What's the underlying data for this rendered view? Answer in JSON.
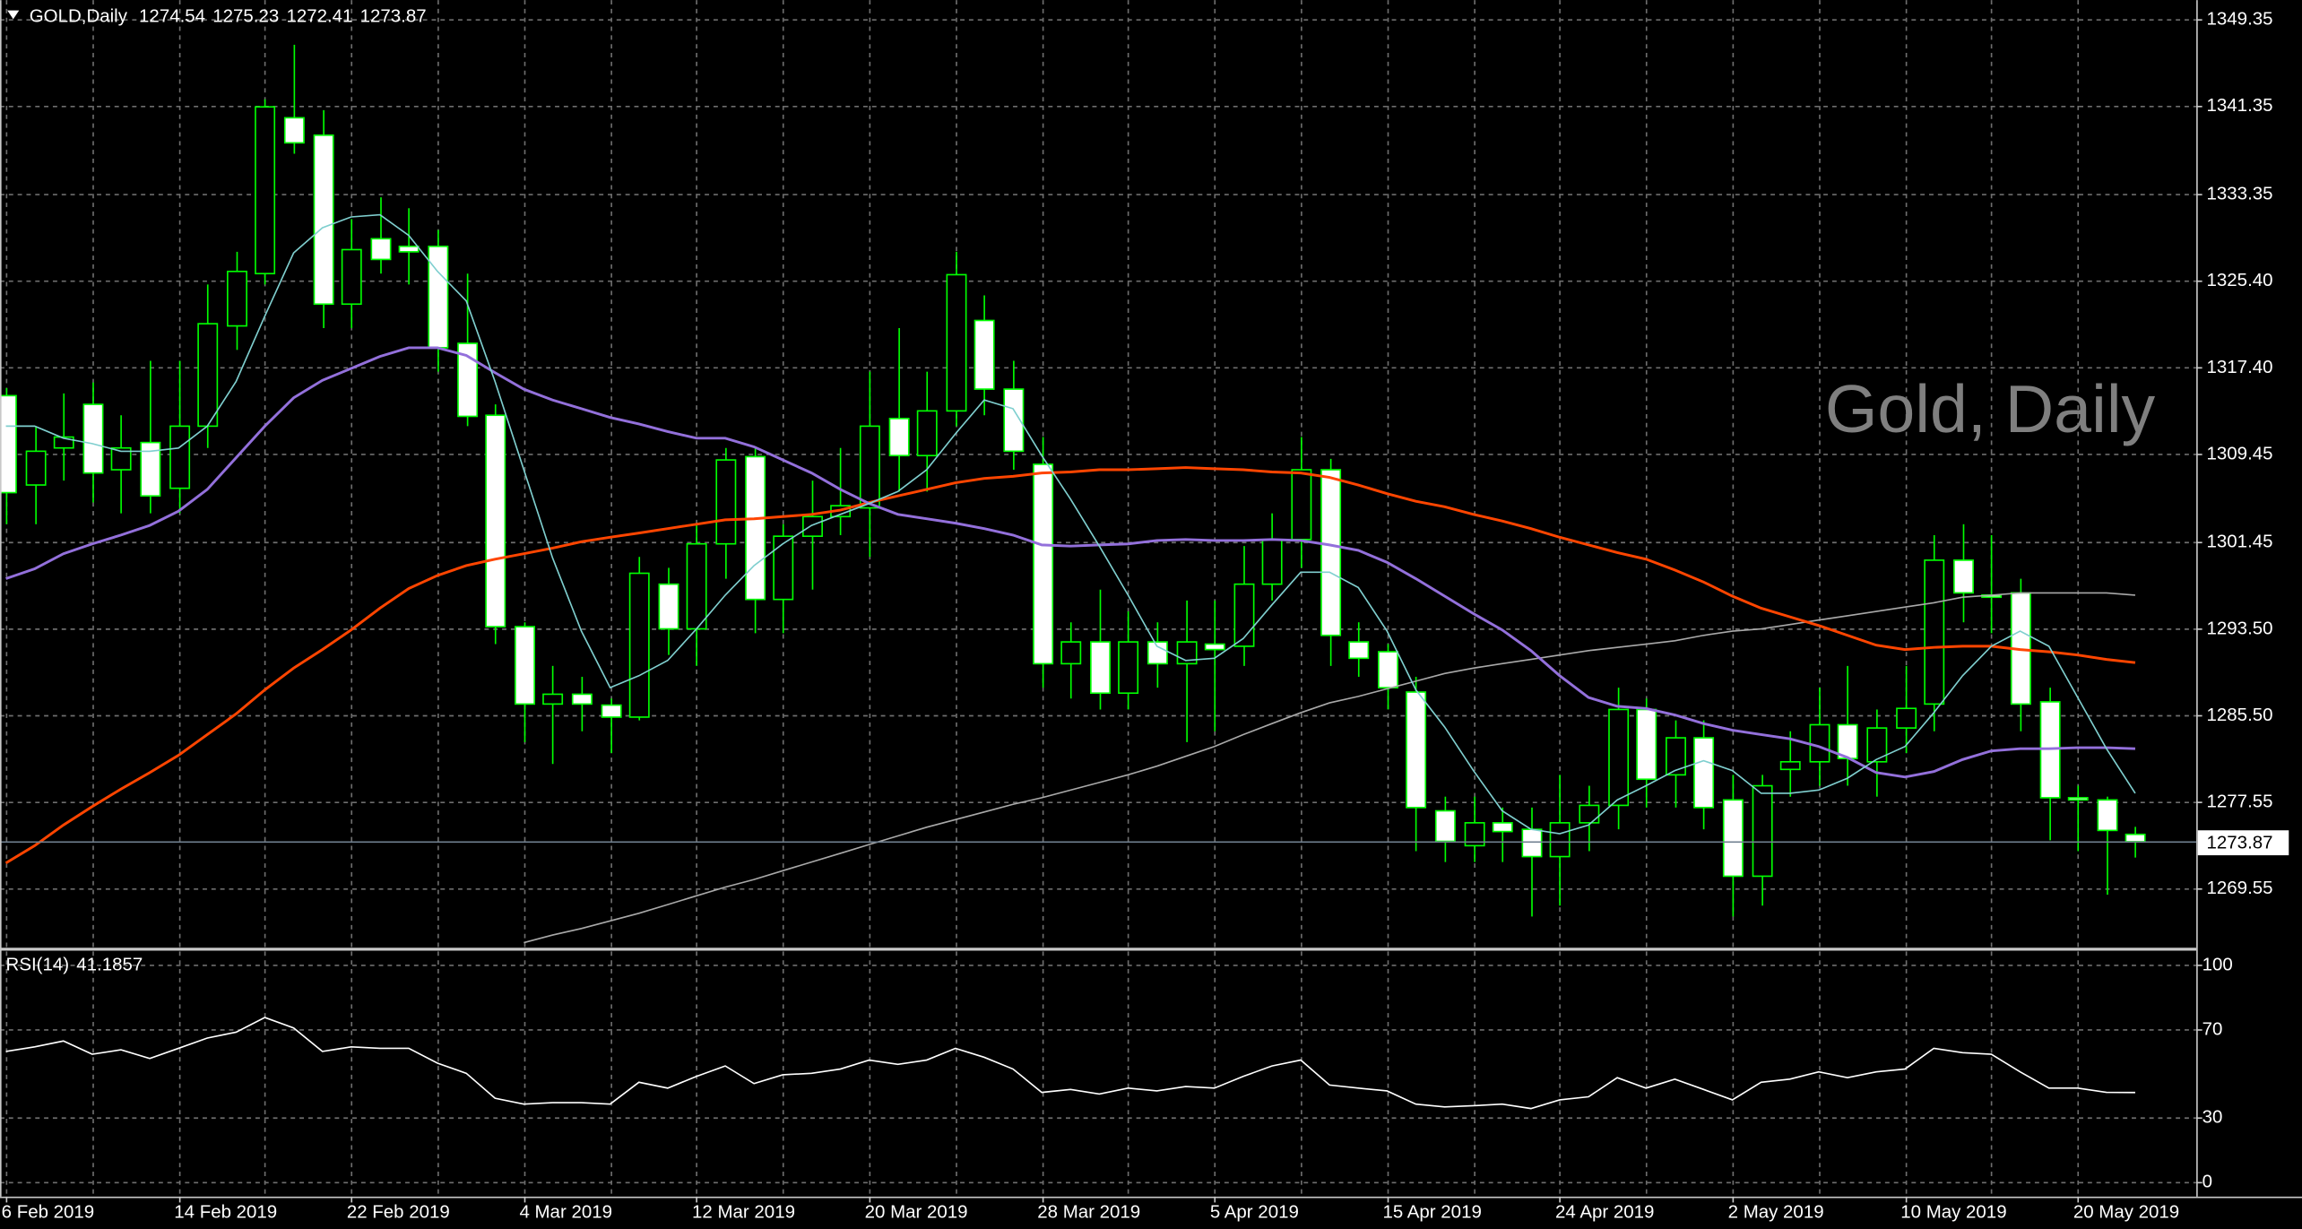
{
  "chart_data": {
    "type": "candlestick",
    "symbol": "GOLD,Daily",
    "watermark": "Gold, Daily",
    "categories": [
      "6 Feb 2019",
      null,
      null,
      null,
      null,
      null,
      "14 Feb 2019",
      null,
      null,
      null,
      null,
      null,
      "22 Feb 2019",
      null,
      null,
      null,
      null,
      null,
      "4 Mar 2019",
      null,
      null,
      null,
      null,
      null,
      "12 Mar 2019",
      null,
      null,
      null,
      null,
      null,
      "20 Mar 2019",
      null,
      null,
      null,
      null,
      null,
      "28 Mar 2019",
      null,
      null,
      null,
      null,
      null,
      "5 Apr 2019",
      null,
      null,
      null,
      null,
      null,
      "15 Apr 2019",
      null,
      null,
      null,
      null,
      null,
      "24 Apr 2019",
      null,
      null,
      null,
      null,
      null,
      "2 May 2019",
      null,
      null,
      null,
      null,
      null,
      "10 May 2019",
      null,
      null,
      null,
      null,
      null,
      "20 May 2019",
      null,
      null
    ],
    "open": [
      1314.8,
      1306.6,
      1310,
      1314,
      1308,
      1310.5,
      1306.3,
      1312,
      1321.2,
      1326,
      1340.3,
      1338.7,
      1323.2,
      1329.2,
      1328.5,
      1328.5,
      1319.6,
      1313,
      1293.6,
      1286.5,
      1287.4,
      1286.4,
      1285.3,
      1297.5,
      1293.4,
      1301.2,
      1309.2,
      1296.1,
      1301.9,
      1303.7,
      1304.5,
      1312.7,
      1309.3,
      1313.4,
      1321.7,
      1315.4,
      1308.5,
      1290.2,
      1292.2,
      1287.5,
      1292.2,
      1290.2,
      1292,
      1291.8,
      1297.5,
      1301.6,
      1308,
      1292.2,
      1291.3,
      1287.6,
      1276.7,
      1273.5,
      1275.6,
      1275,
      1272.5,
      1275.6,
      1277.2,
      1286,
      1280,
      1283.4,
      1277.7,
      1270.7,
      1280.5,
      1281.2,
      1284.6,
      1281.2,
      1284.3,
      1286.5,
      1299.7,
      1296.5,
      1296.7,
      1286.7,
      1277.9,
      1277.7,
      1274.54
    ],
    "high": [
      1315.5,
      1312,
      1315,
      1316,
      1313,
      1318,
      1318,
      1325,
      1328,
      1342,
      1347,
      1341,
      1331,
      1333,
      1332,
      1330,
      1326,
      1314,
      1294,
      1290,
      1289,
      1287,
      1300,
      1299,
      1303,
      1310,
      1310,
      1303,
      1307,
      1310,
      1317,
      1321,
      1317,
      1328,
      1324,
      1318,
      1311,
      1294,
      1297,
      1295,
      1294,
      1296,
      1296,
      1301,
      1304,
      1311,
      1309,
      1294,
      1292,
      1289,
      1278,
      1278,
      1277,
      1277,
      1280,
      1279,
      1288,
      1287,
      1285,
      1285,
      1280,
      1280,
      1284,
      1288,
      1290,
      1286,
      1290,
      1302,
      1303,
      1302,
      1298,
      1288,
      1279,
      1278,
      1275.23
    ],
    "low": [
      1303,
      1303,
      1307,
      1305,
      1304,
      1304,
      1304,
      1310,
      1319,
      1325,
      1337,
      1321,
      1321,
      1326,
      1325,
      1317,
      1312,
      1292,
      1283,
      1281,
      1284,
      1282,
      1285,
      1291,
      1290,
      1298,
      1293,
      1293,
      1297,
      1302,
      1300,
      1306,
      1306,
      1312,
      1313,
      1308,
      1288,
      1287,
      1286,
      1286,
      1288,
      1283,
      1284,
      1290,
      1296,
      1299,
      1290,
      1289,
      1286,
      1273,
      1272,
      1272,
      1272,
      1267,
      1268,
      1273,
      1275,
      1277,
      1277,
      1275,
      1267,
      1268,
      1278,
      1279,
      1279,
      1278,
      1282,
      1284,
      1294,
      1293,
      1284,
      1274,
      1273,
      1269,
      1272.41
    ],
    "close": [
      1305.9,
      1309.7,
      1311,
      1307.7,
      1310,
      1305.6,
      1312,
      1321.4,
      1326.2,
      1341.3,
      1338,
      1323.2,
      1328.2,
      1327.3,
      1328,
      1319.2,
      1312.9,
      1293.6,
      1286.5,
      1287.4,
      1286.5,
      1285.3,
      1298.5,
      1293.4,
      1301.2,
      1308.9,
      1296.1,
      1301.9,
      1303.7,
      1304.7,
      1312,
      1309.3,
      1313.4,
      1325.9,
      1315.4,
      1309.7,
      1290.2,
      1292.2,
      1287.5,
      1292.2,
      1290.2,
      1292.2,
      1291.5,
      1297.5,
      1301.6,
      1308,
      1292.8,
      1290.7,
      1288,
      1277,
      1273.9,
      1275.6,
      1274.8,
      1272.5,
      1275.6,
      1277.2,
      1286,
      1279.6,
      1283.4,
      1277,
      1270.7,
      1279,
      1281.2,
      1284.6,
      1281.5,
      1284.3,
      1286.1,
      1299.7,
      1296.7,
      1296.3,
      1286.5,
      1277.9,
      1277.7,
      1274.9,
      1273.87
    ],
    "colors": {
      "wick": "#00ff00",
      "bull": "#000000",
      "bear": "#ffffff",
      "price_line": "#708090"
    },
    "moving_averages": [
      {
        "color": "#a9a9a9",
        "values": [
          null,
          null,
          null,
          null,
          null,
          null,
          null,
          null,
          null,
          null,
          null,
          null,
          null,
          null,
          null,
          null,
          null,
          null,
          1264.6,
          1265.3,
          1265.9,
          1266.6,
          1267.3,
          1268.1,
          1268.9,
          1269.7,
          1270.4,
          1271.2,
          1272,
          1272.8,
          1273.6,
          1274.4,
          1275.2,
          1275.9,
          1276.6,
          1277.3,
          1277.9,
          1278.6,
          1279.3,
          1280,
          1280.8,
          1281.7,
          1282.6,
          1283.7,
          1284.7,
          1285.7,
          1286.6,
          1287.2,
          1287.9,
          1288.6,
          1289.3,
          1289.8,
          1290.2,
          1290.6,
          1291,
          1291.4,
          1291.7,
          1292,
          1292.3,
          1292.8,
          1293.2,
          1293.4,
          1293.8,
          1294.2,
          1294.6,
          1295,
          1295.4,
          1295.8,
          1296.3,
          1296.5,
          1296.7,
          1296.7,
          1296.7,
          1296.7,
          1296.5
        ]
      },
      {
        "color": "#ff4500",
        "values": [
          1271.9,
          1273.5,
          1275.4,
          1277.1,
          1278.7,
          1280.2,
          1281.8,
          1283.7,
          1285.6,
          1287.8,
          1289.8,
          1291.5,
          1293.3,
          1295.3,
          1297.1,
          1298.3,
          1299.2,
          1299.8,
          1300.3,
          1300.8,
          1301.4,
          1301.8,
          1302.2,
          1302.6,
          1303,
          1303.4,
          1303.5,
          1303.7,
          1303.9,
          1304.3,
          1305,
          1305.6,
          1306.2,
          1306.8,
          1307.2,
          1307.4,
          1307.7,
          1307.8,
          1308,
          1308,
          1308.1,
          1308.2,
          1308.1,
          1308,
          1307.8,
          1307.7,
          1307.3,
          1306.6,
          1305.8,
          1305.1,
          1304.6,
          1303.9,
          1303.3,
          1302.6,
          1301.8,
          1301.1,
          1300.4,
          1299.8,
          1298.8,
          1297.7,
          1296.4,
          1295.3,
          1294.5,
          1293.7,
          1292.8,
          1291.9,
          1291.5,
          1291.7,
          1291.8,
          1291.8,
          1291.5,
          1291.3,
          1291,
          1290.6,
          1290.3
        ]
      },
      {
        "color": "#9370db",
        "values": [
          1298,
          1298.9,
          1300.3,
          1301.2,
          1302,
          1302.9,
          1304.2,
          1306.2,
          1309.1,
          1312,
          1314.6,
          1316.2,
          1317.3,
          1318.4,
          1319.2,
          1319.2,
          1318.5,
          1316.9,
          1315.4,
          1314.4,
          1313.6,
          1312.8,
          1312.2,
          1311.5,
          1310.9,
          1310.9,
          1310.1,
          1308.9,
          1307.7,
          1306.2,
          1304.9,
          1303.9,
          1303.5,
          1303.1,
          1302.6,
          1302,
          1301.1,
          1301,
          1301.1,
          1301.2,
          1301.5,
          1301.6,
          1301.5,
          1301.5,
          1301.6,
          1301.5,
          1301.1,
          1300.6,
          1299.5,
          1298,
          1296.4,
          1294.8,
          1293.3,
          1291.4,
          1289.1,
          1287.1,
          1286.3,
          1286.1,
          1285.5,
          1284.7,
          1284.1,
          1283.7,
          1283.3,
          1282.6,
          1281.6,
          1280.2,
          1279.8,
          1280.3,
          1281.4,
          1282.2,
          1282.4,
          1282.4,
          1282.5,
          1282.5,
          1282.4
        ]
      },
      {
        "color": "#7fcfcf",
        "values": [
          1312,
          1312,
          1310.9,
          1310.4,
          1309.7,
          1309.7,
          1310,
          1312,
          1316.1,
          1322.1,
          1327.9,
          1330.2,
          1331.2,
          1331.4,
          1329.5,
          1326.2,
          1323.5,
          1316.1,
          1308,
          1299.9,
          1293.2,
          1288,
          1289.1,
          1290.5,
          1293.4,
          1296.5,
          1299.2,
          1301.2,
          1302.9,
          1303.9,
          1304.9,
          1306,
          1308,
          1311.3,
          1314.4,
          1313.6,
          1309.3,
          1305.3,
          1301,
          1296.5,
          1291.8,
          1290.5,
          1290.7,
          1292.5,
          1295.6,
          1298.6,
          1298.6,
          1297.2,
          1293.2,
          1287.8,
          1284.4,
          1280.4,
          1276.7,
          1275,
          1274.6,
          1275.4,
          1277.7,
          1279,
          1280.4,
          1281.3,
          1280.4,
          1278.3,
          1278.3,
          1278.6,
          1279.7,
          1281.4,
          1282.6,
          1285.7,
          1289.1,
          1291.8,
          1293.2,
          1291.8,
          1287.1,
          1282.4,
          1278.3
        ]
      }
    ],
    "ylim": [
      1264.2,
      1351.1
    ],
    "yticks": [
      1349.35,
      1341.35,
      1333.35,
      {
        "value": 1325.4,
        "label": "1325.40"
      },
      {
        "value": 1317.4,
        "label": "1317.40"
      },
      1309.45,
      1301.45,
      {
        "value": 1293.5,
        "label": "1293.50"
      },
      {
        "value": 1285.5,
        "label": "1285.50"
      },
      1277.55,
      1269.55
    ],
    "grid": true,
    "indicator": {
      "label": "RSI(14)",
      "color": "#ffffff",
      "values": [
        60.1,
        62.2,
        64.9,
        58.8,
        60.8,
        56.8,
        61.5,
        66.2,
        68.9,
        75.7,
        70.9,
        60.1,
        62.2,
        61.5,
        61.5,
        54.7,
        50,
        38.5,
        35.8,
        36.5,
        36.5,
        35.8,
        45.9,
        43.2,
        48.6,
        53.4,
        45.3,
        49.3,
        50,
        52,
        56.1,
        54.1,
        56.1,
        61.5,
        57.4,
        52,
        41.2,
        42.6,
        40.5,
        43.2,
        41.9,
        43.9,
        43.2,
        48.6,
        53.4,
        56.1,
        44.6,
        43.2,
        41.9,
        35.8,
        34.5,
        35.1,
        35.8,
        33.8,
        37.8,
        39.2,
        48,
        43.2,
        47.3,
        42.6,
        37.8,
        45.9,
        47.3,
        50.7,
        48,
        50.7,
        52,
        61.5,
        59.5,
        58.8,
        50.7,
        43.2,
        43.2,
        41.2,
        41.1857
      ],
      "ylim": [
        -6.76,
        106.1
      ],
      "yticks": [
        100,
        70,
        30,
        0
      ]
    }
  }
}
